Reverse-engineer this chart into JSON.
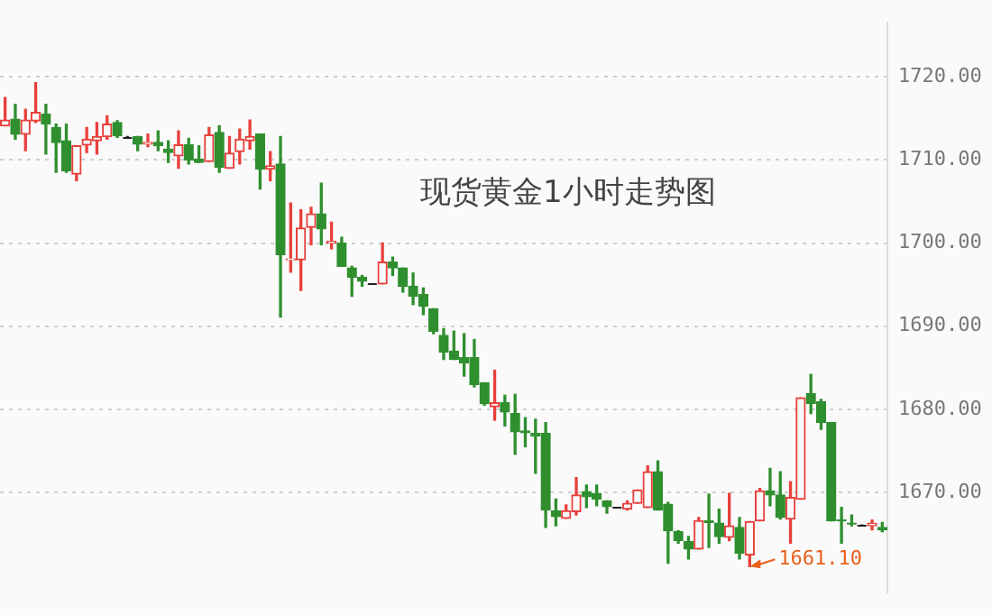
{
  "chart_data": {
    "type": "candlestick",
    "title": "现货黄金1小时走势图",
    "categories": [
      null,
      null,
      null,
      null,
      null,
      null,
      null,
      null,
      null,
      null,
      null,
      null,
      null,
      null,
      null,
      null,
      null,
      null,
      null,
      null,
      null,
      null,
      null,
      null,
      null,
      null,
      null,
      null,
      null,
      null,
      null,
      null,
      null,
      null,
      null,
      null,
      null,
      null,
      null,
      null,
      null,
      null,
      null,
      null,
      null,
      null,
      null,
      null,
      null,
      null,
      null,
      null,
      null,
      null,
      null,
      null,
      null,
      null,
      null,
      null,
      null,
      null,
      null,
      null,
      null,
      null,
      null,
      null,
      null,
      null,
      null,
      null,
      null,
      null,
      null,
      null,
      null,
      null,
      null,
      null,
      null,
      null,
      null,
      null,
      null,
      null,
      null
    ],
    "ohlc": [
      [
        1714.1,
        1717.5,
        1714.1,
        1714.8
      ],
      [
        1714.9,
        1716.7,
        1712.5,
        1713.1
      ],
      [
        1713.1,
        1716.1,
        1711.1,
        1714.8
      ],
      [
        1714.7,
        1719.3,
        1714.5,
        1715.7
      ],
      [
        1715.5,
        1716.7,
        1710.7,
        1714.3
      ],
      [
        1713.9,
        1714.3,
        1708.5,
        1712.1
      ],
      [
        1712.3,
        1714.3,
        1708.5,
        1708.7
      ],
      [
        1708.3,
        1711.7,
        1707.5,
        1711.7
      ],
      [
        1711.8,
        1713.9,
        1710.9,
        1712.5
      ],
      [
        1712.3,
        1714.5,
        1710.7,
        1712.8
      ],
      [
        1712.8,
        1715.3,
        1712.5,
        1714.3
      ],
      [
        1714.5,
        1714.7,
        1712.7,
        1712.9
      ],
      [
        1712.8,
        1712.8,
        1712.8,
        1712.8
      ],
      [
        1712.8,
        1712.8,
        1711.1,
        1711.9
      ],
      [
        1711.9,
        1713.1,
        1711.6,
        1712.1
      ],
      [
        1712.1,
        1713.5,
        1711.1,
        1711.7
      ],
      [
        1711.3,
        1712.3,
        1709.7,
        1710.9
      ],
      [
        1710.5,
        1713.5,
        1709.0,
        1711.8
      ],
      [
        1711.8,
        1712.6,
        1709.5,
        1710.0
      ],
      [
        1710.1,
        1711.7,
        1709.7,
        1709.7
      ],
      [
        1709.8,
        1713.9,
        1709.8,
        1713.0
      ],
      [
        1713.3,
        1714.1,
        1708.5,
        1709.1
      ],
      [
        1709.0,
        1712.8,
        1709.0,
        1710.8
      ],
      [
        1711.0,
        1713.7,
        1709.5,
        1712.5
      ],
      [
        1712.3,
        1714.8,
        1711.3,
        1712.8
      ],
      [
        1713.1,
        1713.1,
        1706.5,
        1708.9
      ],
      [
        1708.9,
        1711.0,
        1707.5,
        1709.3
      ],
      [
        1709.5,
        1712.8,
        1691.1,
        1698.6
      ],
      [
        1698.0,
        1704.8,
        1696.5,
        1698.1
      ],
      [
        1698.0,
        1704.0,
        1694.3,
        1701.8
      ],
      [
        1701.9,
        1704.3,
        1699.8,
        1703.5
      ],
      [
        1703.5,
        1707.2,
        1699.8,
        1701.7
      ],
      [
        1700.0,
        1702.5,
        1699.3,
        1700.2
      ],
      [
        1700.0,
        1700.7,
        1697.2,
        1697.2
      ],
      [
        1697.0,
        1697.2,
        1693.6,
        1695.9
      ],
      [
        1695.9,
        1696.1,
        1694.8,
        1695.4
      ],
      [
        1695.1,
        1695.1,
        1695.1,
        1695.1
      ],
      [
        1695.1,
        1700.0,
        1695.1,
        1697.7
      ],
      [
        1697.7,
        1698.3,
        1696.1,
        1697.0
      ],
      [
        1697.0,
        1697.0,
        1694.1,
        1694.8
      ],
      [
        1694.8,
        1696.4,
        1692.6,
        1693.6
      ],
      [
        1693.8,
        1694.6,
        1691.4,
        1692.4
      ],
      [
        1692.1,
        1692.1,
        1689.1,
        1689.4
      ],
      [
        1688.9,
        1689.7,
        1686.0,
        1686.9
      ],
      [
        1687.0,
        1689.4,
        1686.0,
        1686.0
      ],
      [
        1686.2,
        1689.1,
        1684.0,
        1685.6
      ],
      [
        1686.2,
        1688.4,
        1682.7,
        1683.0
      ],
      [
        1683.2,
        1683.2,
        1680.5,
        1680.7
      ],
      [
        1680.3,
        1684.7,
        1678.7,
        1680.8
      ],
      [
        1680.8,
        1681.7,
        1678.0,
        1679.7
      ],
      [
        1679.5,
        1681.8,
        1674.6,
        1677.3
      ],
      [
        1677.4,
        1679.0,
        1675.5,
        1677.2
      ],
      [
        1677.1,
        1678.8,
        1672.3,
        1676.8
      ],
      [
        1677.1,
        1678.4,
        1665.8,
        1667.9
      ],
      [
        1667.8,
        1669.2,
        1666.0,
        1667.1
      ],
      [
        1666.9,
        1668.5,
        1666.9,
        1667.8
      ],
      [
        1667.7,
        1671.8,
        1667.3,
        1669.7
      ],
      [
        1670.1,
        1670.9,
        1668.2,
        1669.5
      ],
      [
        1669.9,
        1670.9,
        1668.4,
        1669.2
      ],
      [
        1669.0,
        1669.0,
        1667.5,
        1668.3
      ],
      [
        1668.2,
        1668.2,
        1668.2,
        1668.2
      ],
      [
        1668.0,
        1669.0,
        1667.9,
        1668.7
      ],
      [
        1668.7,
        1670.3,
        1668.7,
        1670.3
      ],
      [
        1668.2,
        1673.2,
        1668.2,
        1672.5
      ],
      [
        1672.5,
        1673.8,
        1667.9,
        1667.9
      ],
      [
        1668.6,
        1668.8,
        1661.5,
        1665.4
      ],
      [
        1665.3,
        1665.4,
        1663.9,
        1664.2
      ],
      [
        1664.1,
        1664.7,
        1662.0,
        1663.2
      ],
      [
        1663.2,
        1667.0,
        1663.2,
        1666.6
      ],
      [
        1666.6,
        1669.8,
        1663.4,
        1666.4
      ],
      [
        1666.3,
        1668.0,
        1663.9,
        1664.7
      ],
      [
        1664.6,
        1669.9,
        1664.2,
        1666.0
      ],
      [
        1665.8,
        1667.0,
        1662.0,
        1662.7
      ],
      [
        1662.5,
        1666.5,
        1661.1,
        1666.5
      ],
      [
        1666.6,
        1670.5,
        1666.6,
        1670.2
      ],
      [
        1670.2,
        1672.9,
        1668.4,
        1669.7
      ],
      [
        1669.7,
        1672.5,
        1666.8,
        1667.0
      ],
      [
        1666.8,
        1671.3,
        1663.9,
        1669.4
      ],
      [
        1669.2,
        1681.4,
        1669.2,
        1681.4
      ],
      [
        1681.9,
        1684.2,
        1679.5,
        1680.7
      ],
      [
        1680.9,
        1681.2,
        1677.6,
        1678.4
      ],
      [
        1678.4,
        1678.4,
        1666.6,
        1666.6
      ],
      [
        1666.7,
        1668.2,
        1663.9,
        1666.6
      ],
      [
        1666.3,
        1667.3,
        1666.0,
        1666.2
      ],
      [
        1666.1,
        1666.1,
        1666.1,
        1666.1
      ],
      [
        1666.0,
        1666.7,
        1665.5,
        1666.3
      ],
      [
        1665.8,
        1666.4,
        1665.3,
        1665.5
      ]
    ],
    "colors": [
      "#e8403c",
      "#2f8f2f",
      "#e8403c",
      "#e8403c",
      "#2f8f2f",
      "#2f8f2f",
      "#2f8f2f",
      "#e8403c",
      "#e8403c",
      "#e8403c",
      "#e8403c",
      "#2f8f2f",
      "#222222",
      "#2f8f2f",
      "#e8403c",
      "#2f8f2f",
      "#2f8f2f",
      "#e8403c",
      "#2f8f2f",
      "#2f8f2f",
      "#e8403c",
      "#2f8f2f",
      "#e8403c",
      "#e8403c",
      "#e8403c",
      "#2f8f2f",
      "#e8403c",
      "#2f8f2f",
      "#e8403c",
      "#e8403c",
      "#e8403c",
      "#2f8f2f",
      "#e8403c",
      "#2f8f2f",
      "#2f8f2f",
      "#2f8f2f",
      "#222222",
      "#e8403c",
      "#2f8f2f",
      "#2f8f2f",
      "#2f8f2f",
      "#2f8f2f",
      "#2f8f2f",
      "#2f8f2f",
      "#2f8f2f",
      "#2f8f2f",
      "#2f8f2f",
      "#2f8f2f",
      "#e8403c",
      "#2f8f2f",
      "#2f8f2f",
      "#2f8f2f",
      "#2f8f2f",
      "#2f8f2f",
      "#2f8f2f",
      "#e8403c",
      "#e8403c",
      "#2f8f2f",
      "#2f8f2f",
      "#2f8f2f",
      "#222222",
      "#e8403c",
      "#e8403c",
      "#e8403c",
      "#2f8f2f",
      "#2f8f2f",
      "#2f8f2f",
      "#2f8f2f",
      "#e8403c",
      "#2f8f2f",
      "#2f8f2f",
      "#e8403c",
      "#2f8f2f",
      "#e8403c",
      "#e8403c",
      "#2f8f2f",
      "#2f8f2f",
      "#e8403c",
      "#e8403c",
      "#2f8f2f",
      "#2f8f2f",
      "#2f8f2f",
      "#2f8f2f",
      "#2f8f2f",
      "#222222",
      "#e8403c",
      "#2f8f2f"
    ],
    "ylim": [
      1658,
      1726.5
    ],
    "yticks": [
      {
        "value": 1670,
        "label": "1670.00"
      },
      {
        "value": 1680,
        "label": "1680.00"
      },
      {
        "value": 1690,
        "label": "1690.00"
      },
      {
        "value": 1700,
        "label": "1700.00"
      },
      {
        "value": 1710,
        "label": "1710.00"
      },
      {
        "value": 1720,
        "label": "1720.00"
      }
    ],
    "grid": "y",
    "tick_labels": "y",
    "legend": false,
    "annotations": [
      "1661.10"
    ]
  }
}
